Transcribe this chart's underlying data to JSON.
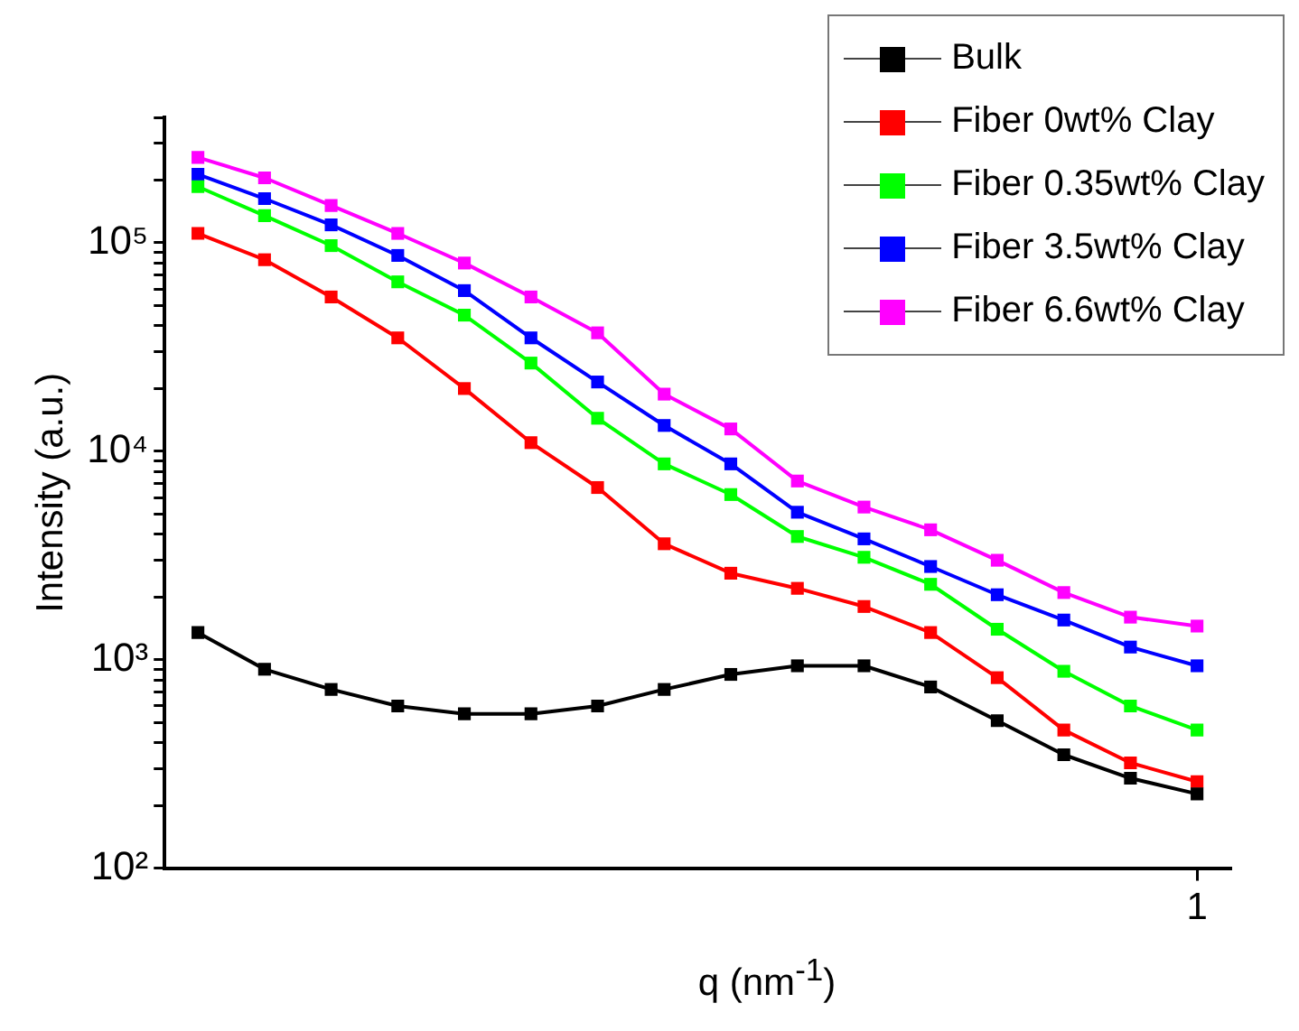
{
  "chart_data": {
    "type": "line",
    "xlabel": "q (nm$^{-1}$)",
    "ylabel": "Intensity (a.u.)",
    "log": "y",
    "grid": false,
    "legend": "top right",
    "marker": "square",
    "line_style": "solid",
    "categories": [
      null,
      null,
      null,
      null,
      null,
      null,
      null,
      null,
      null,
      null,
      null,
      null,
      null,
      null,
      null,
      "1"
    ],
    "ylim": [
      100,
      400000
    ],
    "yticks": [
      {
        "value": 100,
        "label": "10²"
      },
      {
        "value": 200,
        "label": null
      },
      {
        "value": 300,
        "label": null
      },
      {
        "value": 400,
        "label": null
      },
      {
        "value": 500,
        "label": null
      },
      {
        "value": 600,
        "label": null
      },
      {
        "value": 700,
        "label": null
      },
      {
        "value": 800,
        "label": null
      },
      {
        "value": 900,
        "label": null
      },
      {
        "value": 1000,
        "label": "10³"
      },
      {
        "value": 2000,
        "label": null
      },
      {
        "value": 3000,
        "label": null
      },
      {
        "value": 4000,
        "label": null
      },
      {
        "value": 5000,
        "label": null
      },
      {
        "value": 6000,
        "label": null
      },
      {
        "value": 7000,
        "label": null
      },
      {
        "value": 8000,
        "label": null
      },
      {
        "value": 9000,
        "label": null
      },
      {
        "value": 10000,
        "label": "10⁴"
      },
      {
        "value": 20000,
        "label": null
      },
      {
        "value": 30000,
        "label": null
      },
      {
        "value": 40000,
        "label": null
      },
      {
        "value": 50000,
        "label": null
      },
      {
        "value": 60000,
        "label": null
      },
      {
        "value": 70000,
        "label": null
      },
      {
        "value": 80000,
        "label": null
      },
      {
        "value": 90000,
        "label": null
      },
      {
        "value": 100000,
        "label": "10⁵"
      },
      {
        "value": 200000,
        "label": null
      },
      {
        "value": 300000,
        "label": null
      },
      {
        "value": 400000,
        "label": null
      }
    ],
    "series": [
      {
        "name": "Bulk",
        "color": "#000000",
        "values": [
          1350,
          900,
          720,
          600,
          550,
          550,
          600,
          720,
          850,
          935,
          935,
          740,
          510,
          350,
          270,
          227
        ]
      },
      {
        "name": "Fiber 0wt% Clay",
        "color": "#ff0000",
        "values": [
          111000,
          83000,
          55000,
          35000,
          20000,
          11000,
          6700,
          3600,
          2600,
          2200,
          1800,
          1350,
          820,
          460,
          320,
          260
        ]
      },
      {
        "name": "Fiber 0.35wt% Clay",
        "color": "#00ff00",
        "values": [
          186000,
          135000,
          97000,
          65000,
          45000,
          26500,
          14400,
          8700,
          6200,
          3900,
          3100,
          2300,
          1400,
          880,
          600,
          460
        ]
      },
      {
        "name": "Fiber 3.5wt% Clay",
        "color": "#0000ff",
        "values": [
          213000,
          163000,
          122000,
          87000,
          59000,
          35000,
          21500,
          13300,
          8700,
          5100,
          3800,
          2800,
          2050,
          1550,
          1150,
          935
        ]
      },
      {
        "name": "Fiber 6.6wt% Clay",
        "color": "#ff00ff",
        "values": [
          257000,
          205000,
          151000,
          111000,
          80000,
          55000,
          37000,
          18800,
          12800,
          7200,
          5400,
          4200,
          3000,
          2100,
          1600,
          1450
        ]
      }
    ]
  }
}
